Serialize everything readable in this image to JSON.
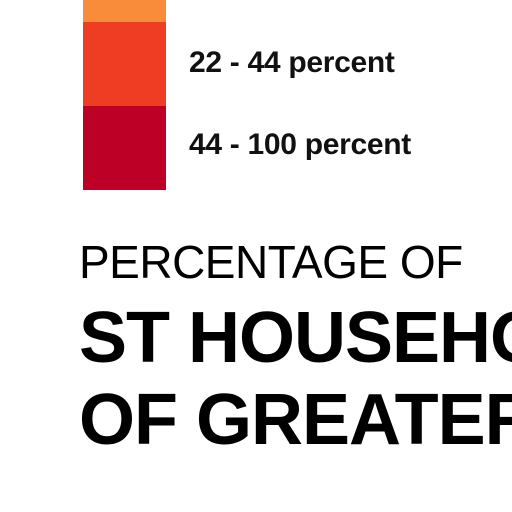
{
  "legend": {
    "items": [
      {
        "label": "",
        "color": "#F98C3A"
      },
      {
        "label": "22 - 44 percent",
        "color": "#EE3D23"
      },
      {
        "label": "44 - 100 percent",
        "color": "#BD0026"
      }
    ]
  },
  "heading": {
    "subtitle": "PERCENTAGE OF",
    "title_line_1": "ST HOUSEHO",
    "title_line_2": "OF GREATER"
  }
}
